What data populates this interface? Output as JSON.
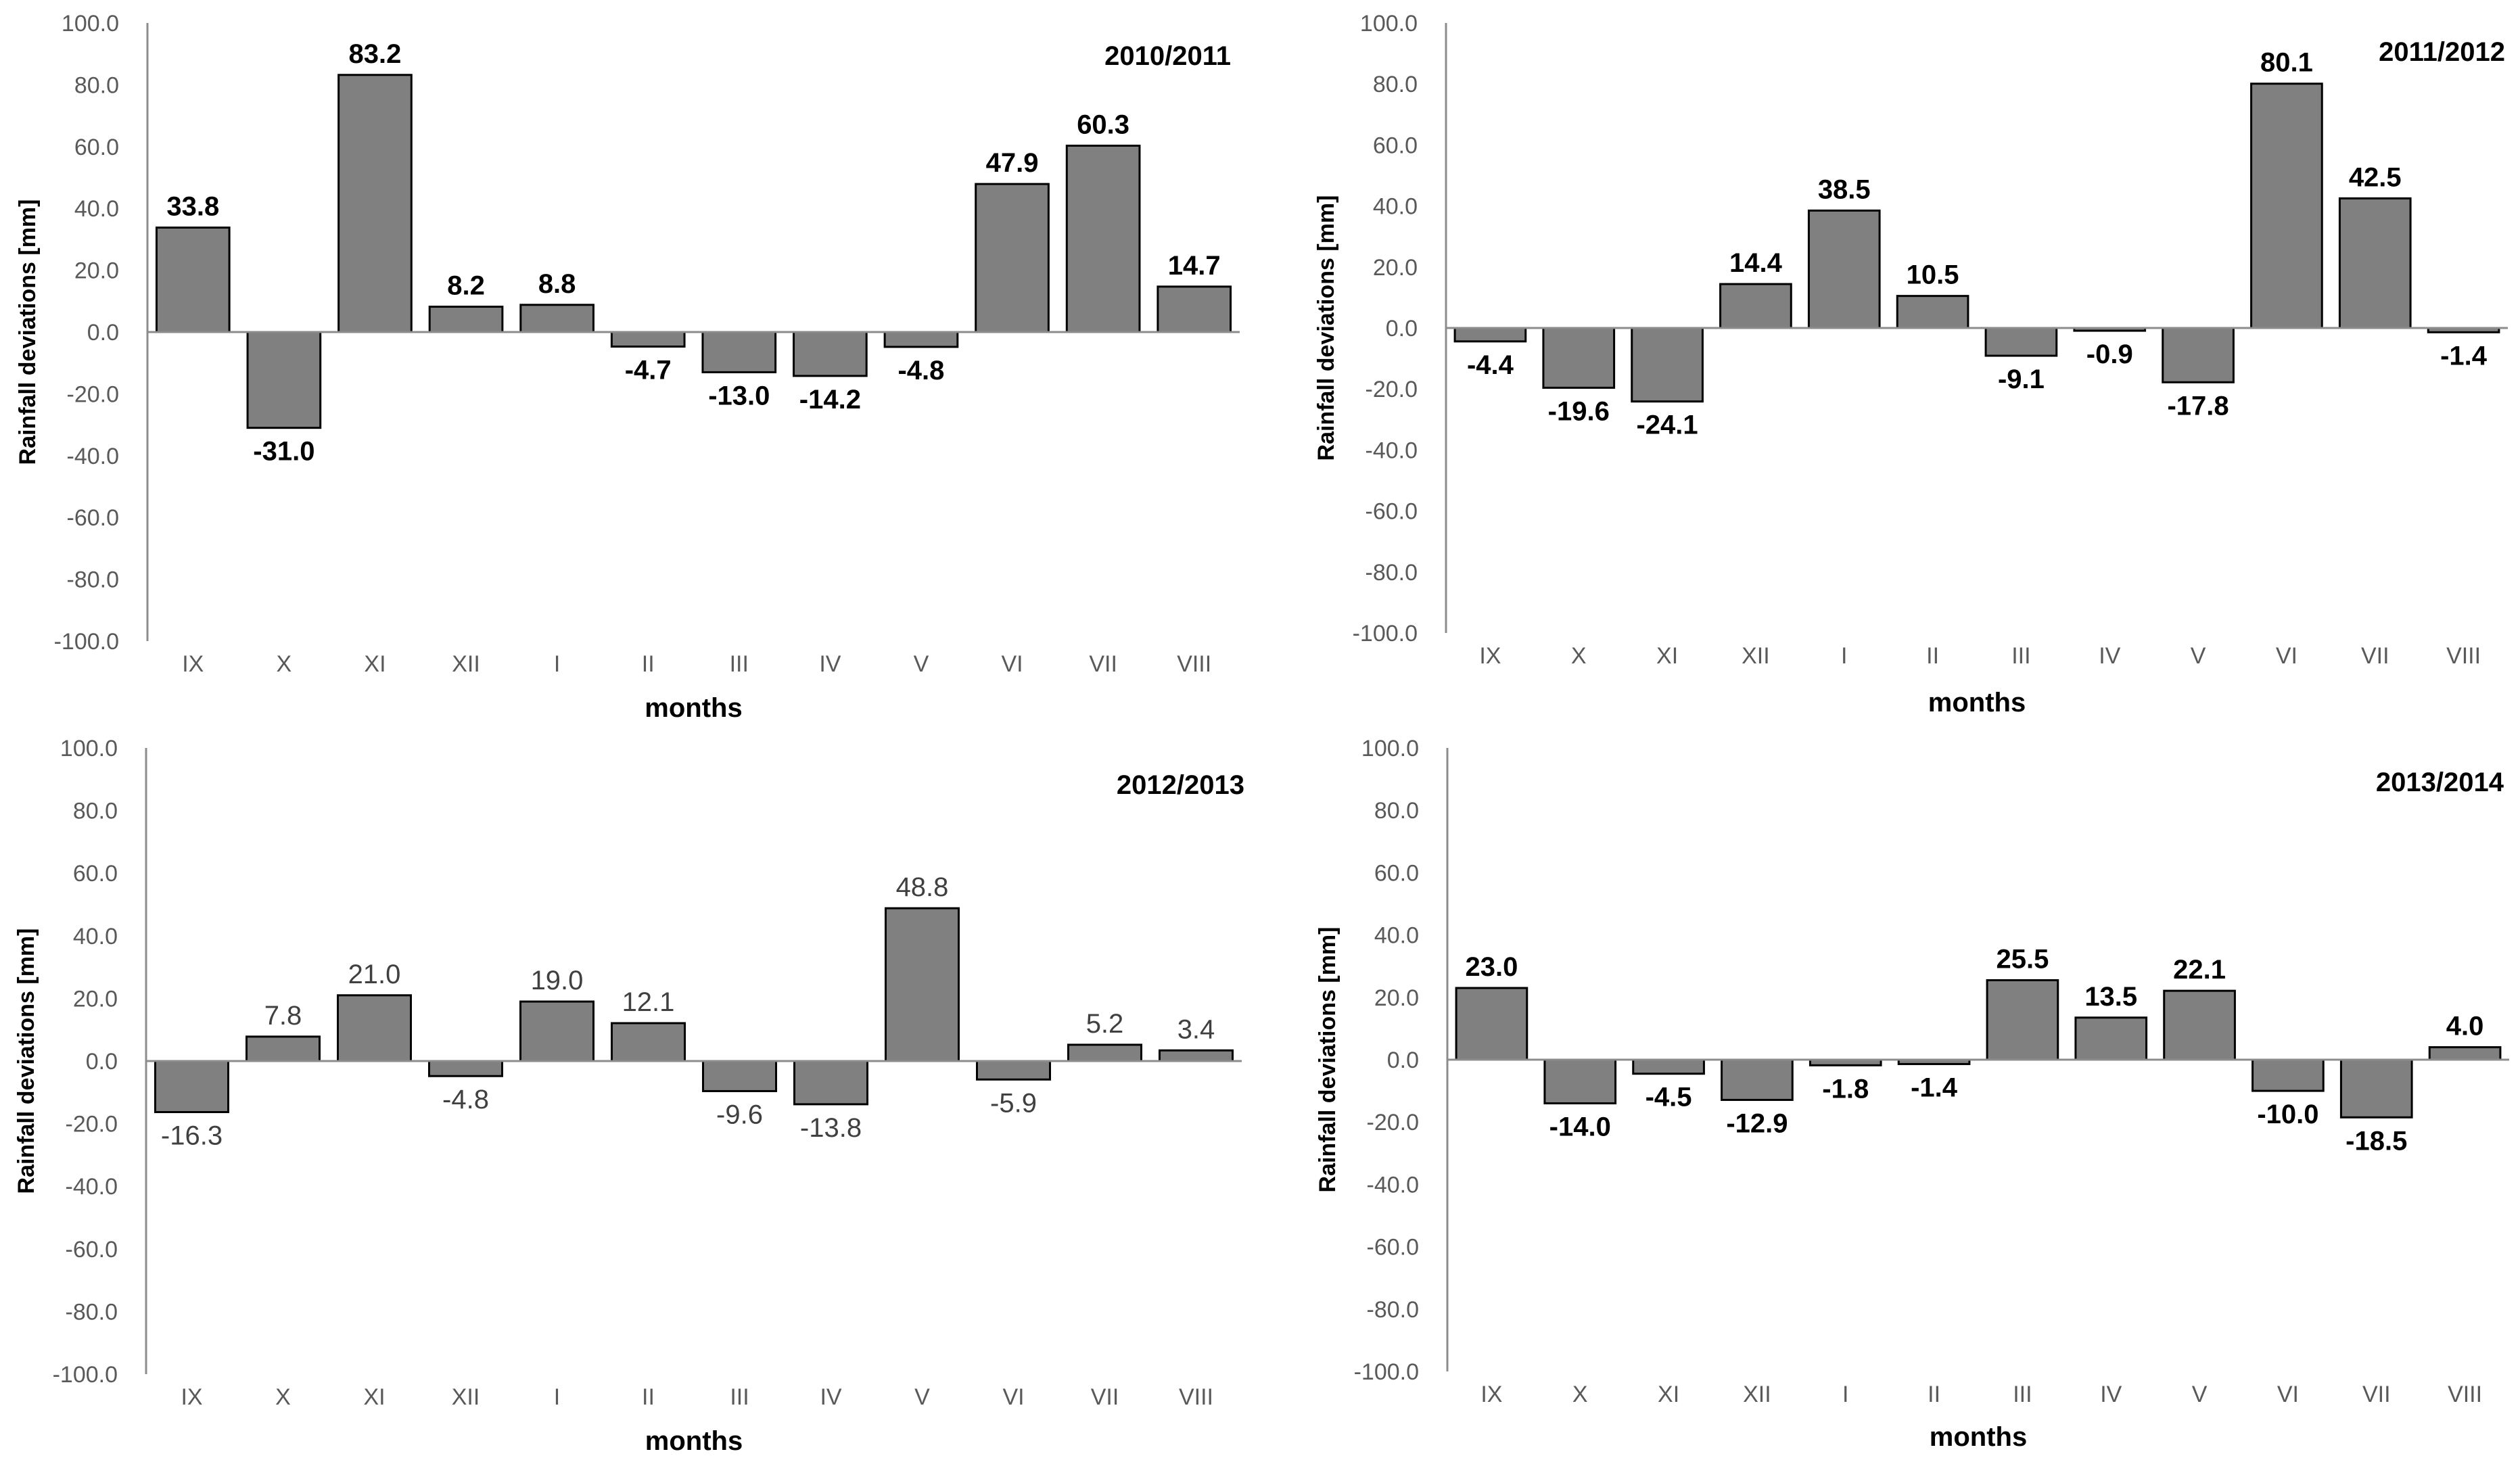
{
  "chart_data": [
    {
      "type": "bar",
      "title": "2010/2011",
      "xlabel": "months",
      "ylabel": "Rainfall deviations [mm]",
      "ylim": [
        -100,
        100
      ],
      "yticks": [
        "100.0",
        "80.0",
        "60.0",
        "40.0",
        "20.0",
        "0.0",
        "-20.0",
        "-40.0",
        "-60.0",
        "-80.0",
        "-100.0"
      ],
      "categories": [
        "IX",
        "X",
        "XI",
        "XII",
        "I",
        "II",
        "III",
        "IV",
        "V",
        "VI",
        "VII",
        "VIII"
      ],
      "values": [
        33.8,
        -31.0,
        83.2,
        8.2,
        8.8,
        -4.7,
        -13.0,
        -14.2,
        -4.8,
        47.9,
        60.3,
        14.7
      ],
      "value_labels": [
        "33.8",
        "-31.0",
        "83.2",
        "8.2",
        "8.8",
        "-4.7",
        "-13.0",
        "-14.2",
        "-4.8",
        "47.9",
        "60.3",
        "14.7"
      ],
      "label_style": "bold"
    },
    {
      "type": "bar",
      "title": "2011/2012",
      "xlabel": "months",
      "ylabel": "Rainfall deviations [mm]",
      "ylim": [
        -100,
        100
      ],
      "yticks": [
        "100.0",
        "80.0",
        "60.0",
        "40.0",
        "20.0",
        "0.0",
        "-20.0",
        "-40.0",
        "-60.0",
        "-80.0",
        "-100.0"
      ],
      "categories": [
        "IX",
        "X",
        "XI",
        "XII",
        "I",
        "II",
        "III",
        "IV",
        "V",
        "VI",
        "VII",
        "VIII"
      ],
      "values": [
        -4.4,
        -19.6,
        -24.1,
        14.4,
        38.5,
        10.5,
        -9.1,
        -0.9,
        -17.8,
        80.1,
        42.5,
        -1.4
      ],
      "value_labels": [
        "-4.4",
        "-19.6",
        "-24.1",
        "14.4",
        "38.5",
        "10.5",
        "-9.1",
        "-0.9",
        "-17.8",
        "80.1",
        "42.5",
        "-1.4"
      ],
      "label_style": "bold"
    },
    {
      "type": "bar",
      "title": "2012/2013",
      "xlabel": "months",
      "ylabel": "Rainfall deviations [mm]",
      "ylim": [
        -100,
        100
      ],
      "yticks": [
        "100.0",
        "80.0",
        "60.0",
        "40.0",
        "20.0",
        "0.0",
        "-20.0",
        "-40.0",
        "-60.0",
        "-80.0",
        "-100.0"
      ],
      "categories": [
        "IX",
        "X",
        "XI",
        "XII",
        "I",
        "II",
        "III",
        "IV",
        "V",
        "VI",
        "VII",
        "VIII"
      ],
      "values": [
        -16.3,
        7.8,
        21.0,
        -4.8,
        19.0,
        12.1,
        -9.6,
        -13.8,
        48.8,
        -5.9,
        5.2,
        3.4
      ],
      "value_labels": [
        "-16.3",
        "7.8",
        "21.0",
        "-4.8",
        "19.0",
        "12.1",
        "-9.6",
        "-13.8",
        "48.8",
        "-5.9",
        "5.2",
        "3.4"
      ],
      "label_style": "light"
    },
    {
      "type": "bar",
      "title": "2013/2014",
      "xlabel": "months",
      "ylabel": "Rainfall deviations [mm]",
      "ylim": [
        -100,
        100
      ],
      "yticks": [
        "100.0",
        "80.0",
        "60.0",
        "40.0",
        "20.0",
        "0.0",
        "-20.0",
        "-40.0",
        "-60.0",
        "-80.0",
        "-100.0"
      ],
      "categories": [
        "IX",
        "X",
        "XI",
        "XII",
        "I",
        "II",
        "III",
        "IV",
        "V",
        "VI",
        "VII",
        "VIII"
      ],
      "values": [
        23.0,
        -14.0,
        -4.5,
        -12.9,
        -1.8,
        -1.4,
        25.5,
        13.5,
        22.1,
        -10.0,
        -18.5,
        4.0
      ],
      "value_labels": [
        "23.0",
        "-14.0",
        "-4.5",
        "-12.9",
        "-1.8",
        "-1.4",
        "25.5",
        "13.5",
        "22.1",
        "-10.0",
        "-18.5",
        "4.0"
      ],
      "label_style": "bold"
    }
  ]
}
